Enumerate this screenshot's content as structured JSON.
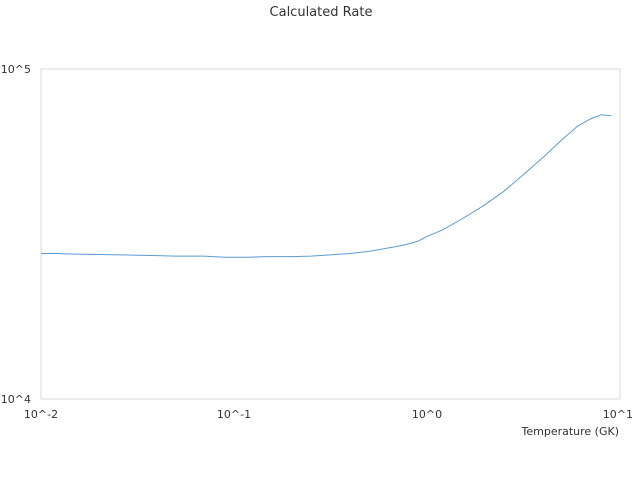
{
  "chart_data": {
    "type": "line",
    "title": "Calculated Rate",
    "xlabel": "Temperature (GK)",
    "ylabel": "",
    "x_scale": "log",
    "y_scale": "log",
    "xlim": [
      0.01,
      10
    ],
    "ylim": [
      10000,
      100000
    ],
    "x_tick_labels": [
      "10^-2",
      "10^-1",
      "10^0",
      "10^1"
    ],
    "y_tick_labels": [
      "10^4",
      "10^5"
    ],
    "grid": false,
    "legend": "none",
    "series": [
      {
        "color": "#5b9bd5",
        "x": [
          0.01,
          0.012,
          0.014,
          0.02,
          0.03,
          0.04,
          0.05,
          0.07,
          0.09,
          0.1,
          0.12,
          0.15,
          0.2,
          0.25,
          0.3,
          0.4,
          0.5,
          0.7,
          0.8,
          0.9,
          1.0,
          1.2,
          1.5,
          2.0,
          2.5,
          3.0,
          4.0,
          5.0,
          6.0,
          7.0,
          8.0,
          9.0
        ],
        "y": [
          27600,
          27600,
          27500,
          27400,
          27300,
          27200,
          27100,
          27100,
          26900,
          26900,
          26900,
          27000,
          27000,
          27100,
          27300,
          27600,
          28000,
          29000,
          29500,
          30100,
          31100,
          32500,
          35000,
          38800,
          42600,
          46600,
          54000,
          61000,
          67000,
          70500,
          72700,
          72200
        ]
      }
    ]
  }
}
